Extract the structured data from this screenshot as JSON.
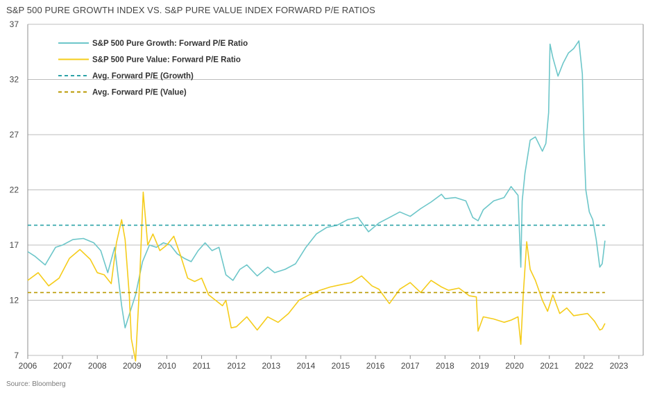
{
  "title": "S&P 500 PURE GROWTH INDEX VS. S&P PURE VALUE INDEX FORWARD P/E RATIOS",
  "source": "Source: Bloomberg",
  "colors": {
    "growth": "#6cc6c9",
    "value": "#f5cc1a",
    "avg_growth": "#2ba2a7",
    "avg_value": "#b99900",
    "grid": "#bdbdbd",
    "axis": "#8c8c8c"
  },
  "chart_data": {
    "type": "line",
    "title": "S&P 500 PURE GROWTH INDEX VS. S&P PURE VALUE INDEX FORWARD P/E RATIOS",
    "xlabel": "",
    "ylabel": "",
    "xlim": [
      2006.0,
      2023.7
    ],
    "ylim": [
      7,
      37
    ],
    "x_ticks": [
      "2006",
      "2007",
      "2008",
      "2009",
      "2010",
      "2011",
      "2012",
      "2013",
      "2014",
      "2015",
      "2016",
      "2017",
      "2018",
      "2019",
      "2020",
      "2021",
      "2022",
      "2023"
    ],
    "y_ticks": [
      "7",
      "12",
      "17",
      "22",
      "27",
      "32",
      "37"
    ],
    "grid": "horizontal",
    "legend_position": "top-left",
    "series": [
      {
        "name": "S&P 500 Pure Growth: Forward P/E Ratio",
        "x": [
          2006.0,
          2006.2,
          2006.5,
          2006.8,
          2007.0,
          2007.3,
          2007.6,
          2007.9,
          2008.1,
          2008.3,
          2008.5,
          2008.7,
          2008.8,
          2008.95,
          2009.1,
          2009.3,
          2009.5,
          2009.7,
          2009.9,
          2010.1,
          2010.3,
          2010.5,
          2010.7,
          2010.9,
          2011.1,
          2011.3,
          2011.5,
          2011.7,
          2011.9,
          2012.1,
          2012.3,
          2012.6,
          2012.9,
          2013.1,
          2013.4,
          2013.7,
          2014.0,
          2014.3,
          2014.6,
          2014.9,
          2015.2,
          2015.5,
          2015.8,
          2016.1,
          2016.4,
          2016.7,
          2017.0,
          2017.3,
          2017.6,
          2017.9,
          2018.0,
          2018.3,
          2018.6,
          2018.8,
          2018.95,
          2019.1,
          2019.4,
          2019.7,
          2019.9,
          2020.1,
          2020.18,
          2020.22,
          2020.3,
          2020.45,
          2020.6,
          2020.8,
          2020.9,
          2020.98,
          2021.02,
          2021.1,
          2021.25,
          2021.4,
          2021.55,
          2021.7,
          2021.85,
          2021.95,
          2022.0,
          2022.05,
          2022.15,
          2022.25,
          2022.35,
          2022.45,
          2022.52,
          2022.6
        ],
        "values": [
          16.4,
          16.0,
          15.2,
          16.8,
          17.0,
          17.5,
          17.6,
          17.2,
          16.5,
          14.5,
          16.8,
          11.5,
          9.5,
          11.0,
          12.5,
          15.5,
          17.0,
          16.8,
          17.2,
          17.0,
          16.2,
          15.8,
          15.5,
          16.5,
          17.2,
          16.5,
          16.8,
          14.3,
          13.8,
          14.8,
          15.2,
          14.2,
          15.0,
          14.5,
          14.8,
          15.3,
          16.8,
          18.0,
          18.6,
          18.8,
          19.3,
          19.5,
          18.2,
          19.0,
          19.5,
          20.0,
          19.6,
          20.3,
          20.9,
          21.6,
          21.2,
          21.3,
          21.0,
          19.5,
          19.2,
          20.2,
          21.0,
          21.3,
          22.3,
          21.5,
          15.0,
          21.0,
          23.5,
          26.5,
          26.8,
          25.5,
          26.2,
          29.0,
          35.2,
          34.0,
          32.3,
          33.5,
          34.4,
          34.8,
          35.5,
          32.5,
          26.0,
          22.0,
          20.0,
          19.3,
          17.5,
          15.0,
          15.3,
          17.4
        ]
      },
      {
        "name": "S&P 500 Pure Value: Forward P/E Ratio",
        "x": [
          2006.0,
          2006.3,
          2006.6,
          2006.9,
          2007.2,
          2007.5,
          2007.8,
          2008.0,
          2008.2,
          2008.4,
          2008.55,
          2008.7,
          2008.8,
          2008.92,
          2008.98,
          2009.1,
          2009.2,
          2009.32,
          2009.45,
          2009.6,
          2009.8,
          2010.0,
          2010.2,
          2010.4,
          2010.6,
          2010.8,
          2011.0,
          2011.2,
          2011.4,
          2011.6,
          2011.7,
          2011.85,
          2012.0,
          2012.3,
          2012.6,
          2012.9,
          2013.2,
          2013.5,
          2013.8,
          2014.1,
          2014.4,
          2014.7,
          2015.0,
          2015.3,
          2015.6,
          2015.9,
          2016.1,
          2016.4,
          2016.7,
          2017.0,
          2017.3,
          2017.6,
          2017.9,
          2018.1,
          2018.4,
          2018.7,
          2018.9,
          2018.95,
          2019.1,
          2019.4,
          2019.7,
          2019.9,
          2020.1,
          2020.18,
          2020.25,
          2020.35,
          2020.45,
          2020.6,
          2020.8,
          2020.95,
          2021.1,
          2021.3,
          2021.5,
          2021.7,
          2021.9,
          2022.1,
          2022.3,
          2022.45,
          2022.52,
          2022.6
        ],
        "values": [
          13.8,
          14.5,
          13.3,
          14.0,
          15.8,
          16.6,
          15.7,
          14.5,
          14.3,
          13.5,
          17.2,
          19.3,
          17.5,
          12.5,
          8.5,
          6.5,
          12.5,
          21.8,
          17.0,
          18.0,
          16.5,
          17.0,
          17.8,
          16.0,
          14.0,
          13.7,
          14.0,
          12.5,
          12.0,
          11.5,
          12.0,
          9.5,
          9.6,
          10.5,
          9.3,
          10.5,
          10.0,
          10.8,
          12.0,
          12.5,
          12.9,
          13.2,
          13.4,
          13.6,
          14.2,
          13.3,
          13.0,
          11.7,
          13.0,
          13.6,
          12.7,
          13.8,
          13.2,
          12.9,
          13.1,
          12.4,
          12.3,
          9.2,
          10.5,
          10.3,
          10.0,
          10.2,
          10.5,
          8.0,
          12.5,
          17.3,
          14.8,
          13.8,
          12.0,
          11.0,
          12.5,
          10.8,
          11.3,
          10.6,
          10.7,
          10.8,
          10.1,
          9.3,
          9.4,
          9.9
        ]
      },
      {
        "name": "Avg. Forward P/E (Growth)",
        "x": [
          2006.0,
          2022.6
        ],
        "values": [
          18.8,
          18.8
        ]
      },
      {
        "name": "Avg. Forward P/E (Value)",
        "x": [
          2006.0,
          2022.6
        ],
        "values": [
          12.7,
          12.7
        ]
      }
    ]
  }
}
